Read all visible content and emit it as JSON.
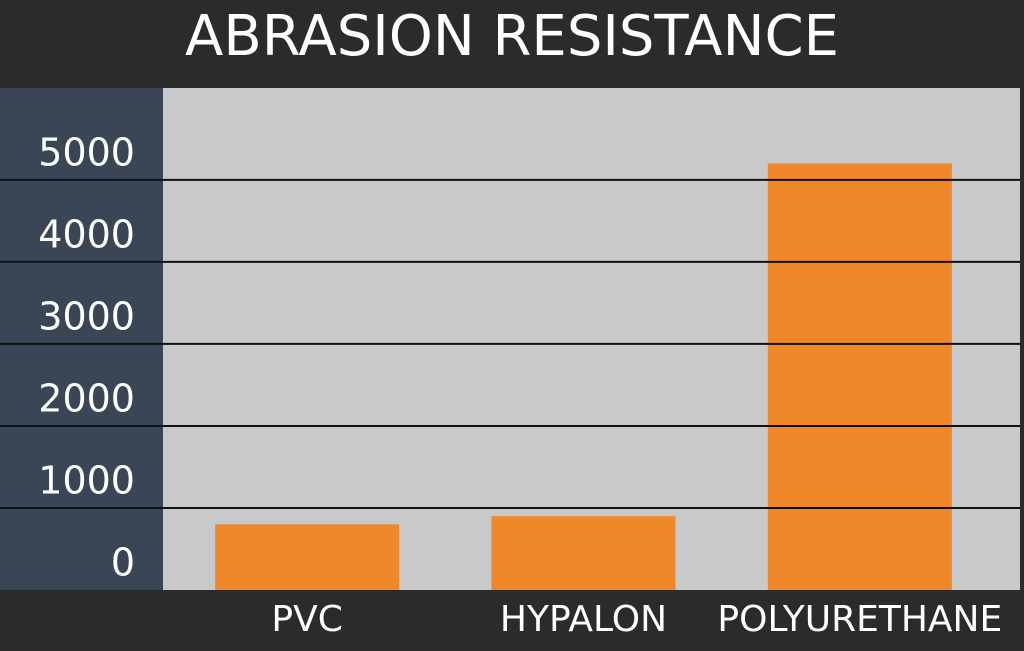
{
  "chart_data": {
    "type": "bar",
    "title": "ABRASION RESISTANCE",
    "categories": [
      "PVC",
      "HYPALON",
      "POLYURETHANE"
    ],
    "values": [
      800,
      900,
      5200
    ],
    "color": "#f0872a",
    "ylim": [
      0,
      6120
    ],
    "yticks": [
      0,
      1000,
      2000,
      3000,
      4000,
      5000
    ],
    "grid": true
  }
}
